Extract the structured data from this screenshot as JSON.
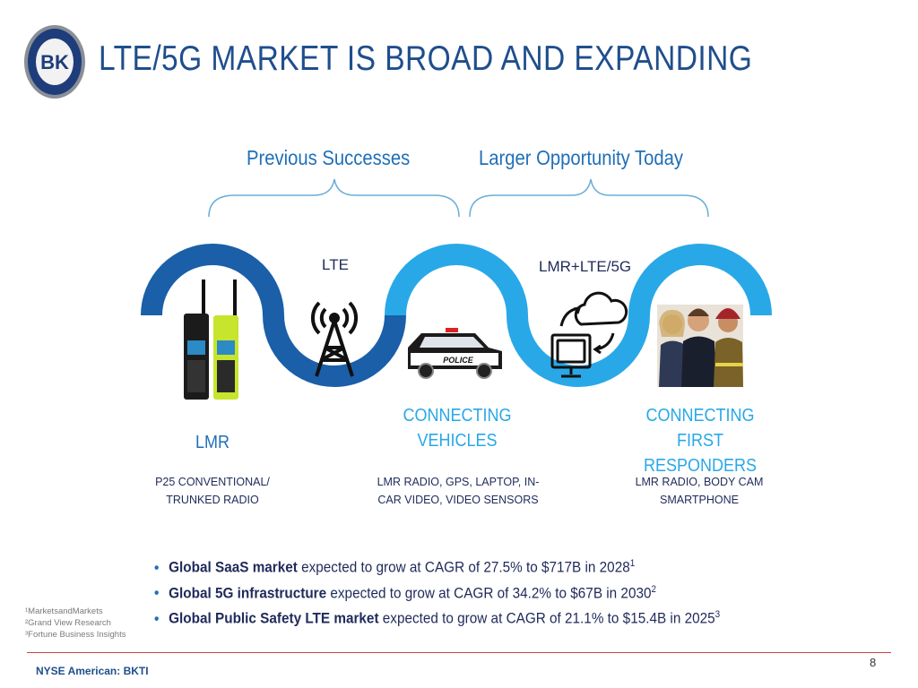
{
  "header": {
    "title": "LTE/5G MARKET IS BROAD AND EXPANDING"
  },
  "logo": {
    "text": "BK"
  },
  "sections": {
    "previous": "Previous Successes",
    "larger": "Larger Opportunity Today"
  },
  "connectors": {
    "lte": "LTE",
    "lmr_lte_5g": "LMR+LTE/5G"
  },
  "stages": [
    {
      "label": "LMR",
      "description": [
        "P25 CONVENTIONAL/",
        "TRUNKED RADIO"
      ]
    },
    {
      "label": [
        "CONNECTING",
        "VEHICLES"
      ],
      "description": [
        "LMR RADIO, GPS, LAPTOP, IN-",
        "CAR VIDEO, VIDEO SENSORS"
      ]
    },
    {
      "label": [
        "CONNECTING",
        "FIRST RESPONDERS"
      ],
      "description": [
        "LMR RADIO, BODY CAM",
        "SMARTPHONE"
      ]
    }
  ],
  "police_text": "POLICE",
  "bullets": [
    {
      "bold": "Global SaaS market",
      "text": " expected to grow at CAGR of 27.5% to $717B in 2028",
      "sup": "1"
    },
    {
      "bold": "Global 5G infrastructure",
      "text": " expected to grow at CAGR of 34.2% to $67B in 2030",
      "sup": "2"
    },
    {
      "bold": "Global Public Safety LTE market",
      "text": " expected to grow at CAGR of 21.1% to $15.4B in 2025",
      "sup": "3"
    }
  ],
  "footnotes": [
    "¹MarketsandMarkets",
    "²Grand View Research",
    "³Fortune Business Insights"
  ],
  "footer": {
    "ticker": "NYSE American: BKTI",
    "page": "8"
  },
  "colors": {
    "dark_blue": "#1a5fa8",
    "light_blue": "#29a8e8",
    "title_blue": "#1f4e8c",
    "footer_line": "#c64545"
  }
}
